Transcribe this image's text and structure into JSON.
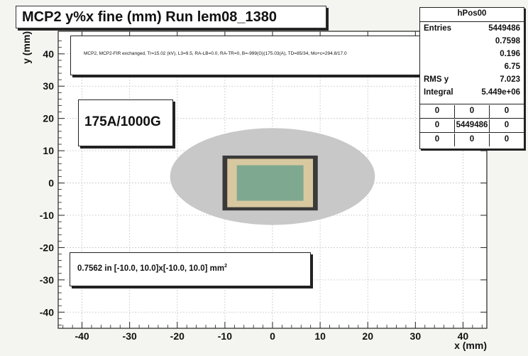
{
  "title": "MCP2 y%x fine (mm) Run lem08_1380",
  "info_text": "MCP2, MCP2-FIR exchanged, Tr=15.02 (kV), L3=9.5, RA-LB=0.0, RA-TR=0, B=-999(G)(175.03(A), TD=85/34, Mo+c=294.8/17.0",
  "setting_label": "175A/1000G",
  "fraction_label": "0.7562 in [-10.0, 10.0]x[-10.0, 10.0] mm",
  "fraction_unit_sup": "2",
  "stats": {
    "name": "hPos00",
    "rows": [
      {
        "label": "Entries",
        "value": "5449486"
      },
      {
        "label": "",
        "value": "0.7598"
      },
      {
        "label": "",
        "value": "0.196"
      },
      {
        "label": "",
        "value": "6.75"
      },
      {
        "label": "RMS y",
        "value": "7.023"
      },
      {
        "label": "Integral",
        "value": "5.449e+06"
      }
    ],
    "grid": [
      [
        "0",
        "0",
        "0"
      ],
      [
        "0",
        "5449486",
        "0"
      ],
      [
        "0",
        "0",
        "0"
      ]
    ]
  },
  "chart_data": {
    "type": "heatmap",
    "title": "MCP2 y%x fine (mm) Run lem08_1380",
    "xlabel": "x (mm)",
    "ylabel": "y (mm)",
    "xlim": [
      -45,
      45
    ],
    "ylim": [
      -45,
      47
    ],
    "x_ticks": [
      -40,
      -30,
      -20,
      -10,
      0,
      10,
      20,
      30,
      40
    ],
    "y_ticks": [
      -40,
      -30,
      -20,
      -10,
      0,
      10,
      20,
      30,
      40
    ],
    "grid": true,
    "regions": [
      {
        "name": "halo",
        "shape": "ellipse",
        "cx": 0,
        "cy": 2,
        "rx": 21.5,
        "ry": 15,
        "color": "#c8c8c8"
      },
      {
        "name": "core-edge",
        "shape": "rect",
        "x": [
          -10.5,
          9.5
        ],
        "y": [
          -8.5,
          8.5
        ],
        "color": "#3a3a3a"
      },
      {
        "name": "core",
        "shape": "rect",
        "x": [
          -9.5,
          8.5
        ],
        "y": [
          -7.5,
          7.5
        ],
        "color": "#d8c8a0"
      },
      {
        "name": "center",
        "shape": "rect",
        "x": [
          -7.5,
          6.5
        ],
        "y": [
          -5.5,
          5.5
        ],
        "color": "#7fa890"
      }
    ],
    "colors": {
      "frame": "#222222",
      "grid": "#c8c8c8",
      "background": "#ffffff"
    }
  }
}
